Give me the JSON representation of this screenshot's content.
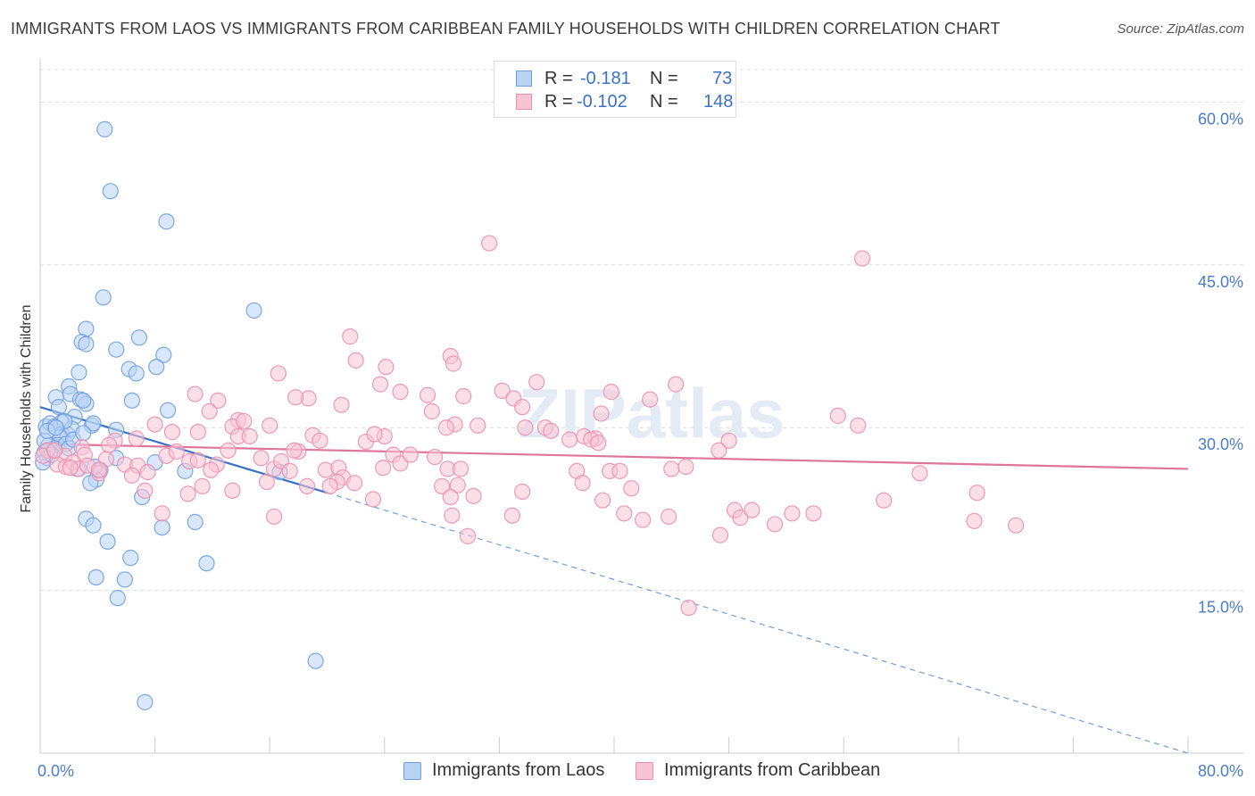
{
  "title": "IMMIGRANTS FROM LAOS VS IMMIGRANTS FROM CARIBBEAN FAMILY HOUSEHOLDS WITH CHILDREN CORRELATION CHART",
  "source": "Source: ZipAtlas.com",
  "watermark": "ZIPatlas",
  "legend": {
    "r_label": "R =",
    "n_label": "N =",
    "rows": [
      {
        "series": "Immigrants from Laos",
        "r": "-0.181",
        "n": "73",
        "fill": "#b9d3f5",
        "stroke": "#6e9fe0"
      },
      {
        "series": "Immigrants from Caribbean",
        "r": "-0.102",
        "n": "148",
        "fill": "#f8c4d4",
        "stroke": "#ea8fb0"
      }
    ]
  },
  "chart_data": {
    "type": "scatter",
    "title": "IMMIGRANTS FROM LAOS VS IMMIGRANTS FROM CARIBBEAN FAMILY HOUSEHOLDS WITH CHILDREN CORRELATION CHART",
    "xlabel": "",
    "ylabel": "Family Households with Children",
    "xlim": [
      0,
      80
    ],
    "ylim": [
      0,
      63
    ],
    "x_ticks": [
      0,
      8,
      16,
      24,
      32,
      40,
      48,
      56,
      64,
      72,
      80
    ],
    "x_tick_labels": [
      {
        "value": 0,
        "label": "0.0%"
      },
      {
        "value": 80,
        "label": "80.0%"
      }
    ],
    "y_ticks": [
      {
        "value": 15,
        "label": "15.0%"
      },
      {
        "value": 30,
        "label": "30.0%"
      },
      {
        "value": 45,
        "label": "45.0%"
      },
      {
        "value": 60,
        "label": "60.0%"
      }
    ],
    "grid": true,
    "series": [
      {
        "name": "Immigrants from Laos",
        "color": "#6e9fe0",
        "fill": "#b9d3f5",
        "points": [
          [
            4.5,
            57.5
          ],
          [
            4.9,
            51.8
          ],
          [
            8.8,
            49.0
          ],
          [
            14.9,
            40.8
          ],
          [
            4.4,
            42.0
          ],
          [
            3.2,
            39.1
          ],
          [
            6.9,
            38.3
          ],
          [
            2.9,
            37.9
          ],
          [
            3.2,
            37.7
          ],
          [
            5.3,
            37.2
          ],
          [
            8.6,
            36.7
          ],
          [
            2.7,
            35.1
          ],
          [
            6.2,
            35.4
          ],
          [
            6.7,
            35.0
          ],
          [
            8.1,
            35.6
          ],
          [
            2.0,
            33.8
          ],
          [
            2.1,
            33.1
          ],
          [
            1.1,
            32.8
          ],
          [
            2.8,
            32.6
          ],
          [
            3.2,
            32.2
          ],
          [
            3.0,
            32.5
          ],
          [
            1.3,
            31.9
          ],
          [
            2.4,
            31.0
          ],
          [
            1.5,
            30.5
          ],
          [
            3.6,
            30.2
          ],
          [
            3.7,
            30.4
          ],
          [
            5.3,
            29.8
          ],
          [
            6.4,
            32.5
          ],
          [
            8.9,
            31.6
          ],
          [
            0.4,
            30.1
          ],
          [
            0.7,
            30.4
          ],
          [
            1.0,
            30.1
          ],
          [
            1.5,
            29.4
          ],
          [
            1.9,
            29.4
          ],
          [
            2.2,
            29.9
          ],
          [
            1.4,
            29.1
          ],
          [
            1.2,
            28.4
          ],
          [
            0.6,
            28.4
          ],
          [
            0.3,
            27.7
          ],
          [
            0.5,
            27.2
          ],
          [
            0.2,
            26.8
          ],
          [
            1.0,
            28.1
          ],
          [
            1.8,
            28.5
          ],
          [
            2.0,
            28.1
          ],
          [
            2.6,
            26.2
          ],
          [
            4.2,
            26.1
          ],
          [
            5.3,
            27.2
          ],
          [
            8.0,
            26.8
          ],
          [
            10.1,
            26.0
          ],
          [
            16.7,
            25.9
          ],
          [
            3.9,
            25.2
          ],
          [
            3.5,
            24.9
          ],
          [
            7.1,
            23.6
          ],
          [
            3.2,
            21.6
          ],
          [
            3.7,
            21.0
          ],
          [
            8.5,
            20.8
          ],
          [
            10.8,
            21.3
          ],
          [
            4.7,
            19.5
          ],
          [
            6.3,
            18.0
          ],
          [
            11.6,
            17.5
          ],
          [
            3.9,
            16.2
          ],
          [
            5.9,
            16.0
          ],
          [
            5.4,
            14.3
          ],
          [
            19.2,
            8.5
          ],
          [
            7.3,
            4.7
          ],
          [
            3.8,
            26.4
          ],
          [
            0.3,
            28.8
          ],
          [
            0.5,
            29.7
          ],
          [
            2.3,
            28.9
          ],
          [
            3.0,
            29.5
          ],
          [
            1.7,
            30.6
          ],
          [
            1.1,
            30.0
          ],
          [
            0.8,
            27.5
          ]
        ]
      },
      {
        "name": "Immigrants from Caribbean",
        "color": "#ea8fb0",
        "fill": "#f8c4d4",
        "points": [
          [
            31.3,
            47.0
          ],
          [
            57.3,
            45.6
          ],
          [
            21.6,
            38.4
          ],
          [
            28.6,
            36.6
          ],
          [
            22.0,
            36.2
          ],
          [
            24.1,
            35.6
          ],
          [
            16.6,
            35.0
          ],
          [
            28.8,
            35.9
          ],
          [
            34.6,
            34.2
          ],
          [
            44.3,
            34.0
          ],
          [
            23.7,
            34.0
          ],
          [
            25.1,
            33.3
          ],
          [
            27.0,
            33.0
          ],
          [
            32.2,
            33.4
          ],
          [
            39.8,
            33.3
          ],
          [
            29.5,
            32.9
          ],
          [
            18.7,
            32.7
          ],
          [
            17.8,
            32.8
          ],
          [
            10.8,
            33.1
          ],
          [
            12.4,
            32.5
          ],
          [
            21.0,
            32.1
          ],
          [
            27.3,
            31.5
          ],
          [
            33.0,
            32.7
          ],
          [
            33.6,
            31.9
          ],
          [
            39.1,
            31.3
          ],
          [
            42.5,
            32.6
          ],
          [
            55.6,
            31.1
          ],
          [
            11.8,
            31.5
          ],
          [
            13.8,
            30.7
          ],
          [
            13.4,
            30.1
          ],
          [
            16.0,
            30.2
          ],
          [
            8.0,
            30.3
          ],
          [
            11.0,
            29.6
          ],
          [
            24.0,
            29.2
          ],
          [
            28.9,
            30.3
          ],
          [
            30.5,
            30.2
          ],
          [
            28.3,
            30.0
          ],
          [
            33.8,
            30.0
          ],
          [
            35.2,
            30.0
          ],
          [
            38.7,
            29.0
          ],
          [
            35.6,
            29.7
          ],
          [
            36.9,
            28.9
          ],
          [
            37.9,
            29.2
          ],
          [
            38.4,
            28.9
          ],
          [
            38.9,
            28.6
          ],
          [
            48.0,
            28.8
          ],
          [
            57.0,
            30.2
          ],
          [
            19.0,
            29.3
          ],
          [
            22.7,
            28.7
          ],
          [
            23.3,
            29.4
          ],
          [
            19.5,
            28.8
          ],
          [
            13.8,
            29.2
          ],
          [
            6.7,
            29.0
          ],
          [
            5.2,
            28.8
          ],
          [
            4.8,
            28.4
          ],
          [
            2.9,
            28.2
          ],
          [
            3.1,
            27.5
          ],
          [
            1.7,
            27.4
          ],
          [
            0.5,
            27.9
          ],
          [
            0.2,
            27.4
          ],
          [
            1.2,
            26.6
          ],
          [
            1.8,
            26.4
          ],
          [
            2.3,
            26.8
          ],
          [
            2.7,
            26.2
          ],
          [
            3.3,
            26.5
          ],
          [
            4.1,
            25.8
          ],
          [
            4.6,
            27.1
          ],
          [
            5.9,
            26.6
          ],
          [
            6.8,
            26.5
          ],
          [
            7.5,
            25.9
          ],
          [
            8.8,
            27.4
          ],
          [
            9.5,
            27.8
          ],
          [
            10.4,
            26.9
          ],
          [
            11.0,
            27.0
          ],
          [
            12.3,
            26.6
          ],
          [
            13.1,
            27.9
          ],
          [
            15.4,
            27.2
          ],
          [
            16.3,
            26.2
          ],
          [
            16.8,
            26.9
          ],
          [
            17.4,
            26.0
          ],
          [
            18.0,
            27.8
          ],
          [
            19.9,
            26.1
          ],
          [
            20.8,
            26.3
          ],
          [
            21.1,
            25.4
          ],
          [
            23.9,
            26.3
          ],
          [
            24.6,
            27.5
          ],
          [
            25.1,
            26.7
          ],
          [
            25.8,
            27.5
          ],
          [
            27.5,
            27.3
          ],
          [
            28.4,
            26.2
          ],
          [
            29.3,
            26.2
          ],
          [
            29.1,
            24.7
          ],
          [
            15.8,
            25.0
          ],
          [
            20.7,
            25.0
          ],
          [
            21.9,
            24.9
          ],
          [
            11.3,
            24.6
          ],
          [
            13.4,
            24.2
          ],
          [
            18.6,
            24.6
          ],
          [
            20.2,
            24.6
          ],
          [
            28.0,
            24.6
          ],
          [
            28.6,
            23.6
          ],
          [
            30.2,
            23.7
          ],
          [
            33.6,
            24.1
          ],
          [
            32.9,
            21.9
          ],
          [
            37.4,
            26.0
          ],
          [
            37.8,
            24.9
          ],
          [
            39.7,
            26.0
          ],
          [
            40.4,
            26.0
          ],
          [
            39.2,
            23.3
          ],
          [
            40.7,
            22.1
          ],
          [
            41.2,
            24.4
          ],
          [
            42.0,
            21.5
          ],
          [
            44.0,
            26.2
          ],
          [
            45.0,
            26.4
          ],
          [
            43.8,
            21.8
          ],
          [
            47.3,
            27.9
          ],
          [
            47.4,
            20.1
          ],
          [
            48.4,
            22.4
          ],
          [
            48.8,
            21.7
          ],
          [
            49.6,
            22.4
          ],
          [
            51.2,
            21.1
          ],
          [
            52.4,
            22.1
          ],
          [
            53.9,
            22.1
          ],
          [
            58.8,
            23.3
          ],
          [
            61.3,
            25.8
          ],
          [
            65.1,
            21.4
          ],
          [
            65.3,
            24.0
          ],
          [
            68.0,
            21.0
          ],
          [
            7.3,
            24.2
          ],
          [
            8.5,
            22.1
          ],
          [
            10.3,
            23.9
          ],
          [
            16.3,
            21.8
          ],
          [
            23.2,
            23.4
          ],
          [
            28.7,
            21.9
          ],
          [
            29.8,
            20.0
          ],
          [
            45.2,
            13.4
          ],
          [
            9.2,
            29.6
          ],
          [
            14.2,
            30.6
          ],
          [
            17.7,
            27.9
          ],
          [
            14.6,
            29.2
          ],
          [
            4.1,
            26.1
          ],
          [
            6.4,
            25.6
          ],
          [
            11.9,
            26.1
          ],
          [
            2.1,
            26.3
          ],
          [
            1.0,
            27.9
          ]
        ]
      }
    ],
    "trendlines": [
      {
        "series": "Immigrants from Laos",
        "solid_from": [
          0,
          31.9
        ],
        "solid_to": [
          20.0,
          24.0
        ],
        "dashed_to": [
          80.0,
          0.0
        ]
      },
      {
        "series": "Immigrants from Caribbean",
        "from": [
          0,
          28.5
        ],
        "to": [
          80.0,
          26.2
        ]
      }
    ]
  }
}
